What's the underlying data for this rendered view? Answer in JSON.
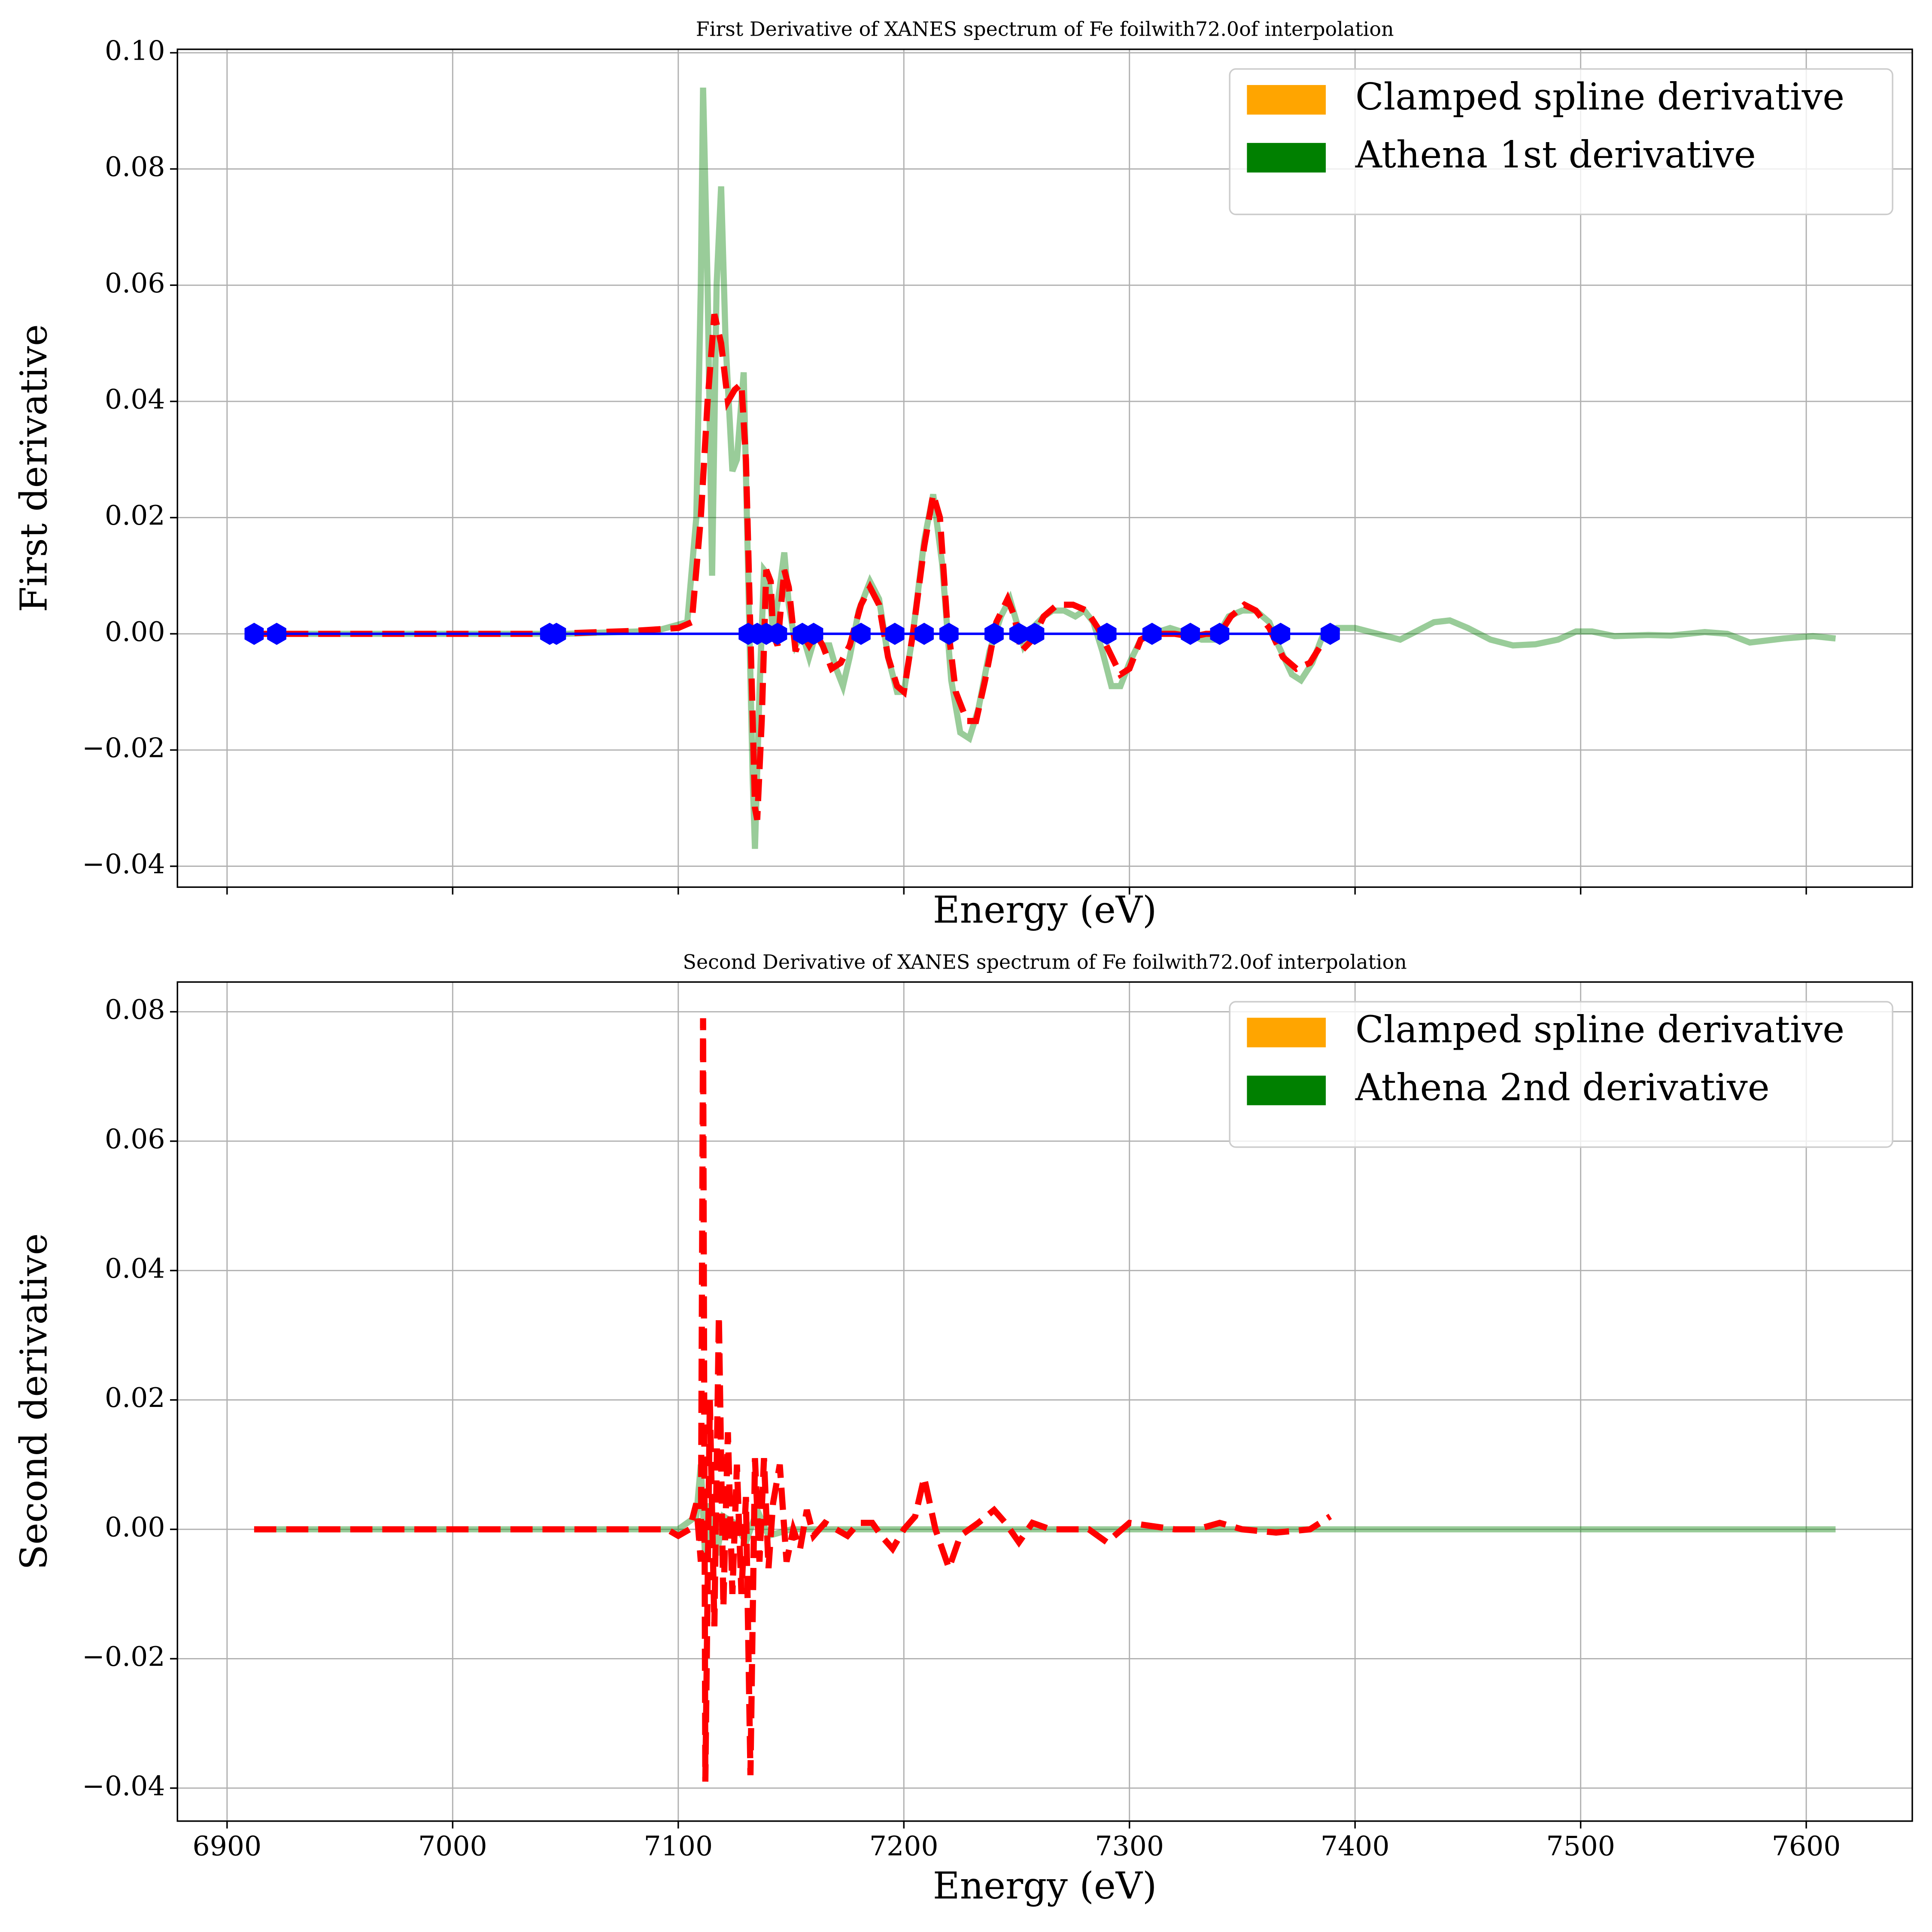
{
  "chart_data": [
    {
      "type": "line",
      "title": "First Derivative of XANES spectrum of Fe foilwith72.0of interpolation",
      "x_label": "Energy (eV)",
      "y_label": "First derivative",
      "xlim": [
        6878,
        7647
      ],
      "ylim": [
        -0.0436,
        0.1006
      ],
      "xticks": [
        6900,
        7000,
        7100,
        7200,
        7300,
        7400,
        7500,
        7600
      ],
      "xtick_labels": false,
      "yticks": [
        {
          "value": -0.04,
          "label": "−0.04"
        },
        {
          "value": -0.02,
          "label": "−0.02"
        },
        {
          "value": 0,
          "label": "0.00"
        },
        0.02,
        0.04,
        0.06,
        0.08,
        {
          "value": 0.1,
          "label": "0.10"
        }
      ],
      "grid": true,
      "legend": "upper right",
      "series": [
        {
          "name": "Clamped spline derivative",
          "legend_color": "orange",
          "color": "red",
          "linestyle": "dashed",
          "zorder": 2,
          "x": [
            6912,
            6922,
            7044,
            7080,
            7100,
            7106,
            7110,
            7113,
            7116,
            7119,
            7122,
            7125,
            7128,
            7130,
            7132,
            7134,
            7135,
            7137,
            7139,
            7141,
            7142,
            7144,
            7147,
            7149,
            7152,
            7155,
            7158,
            7161,
            7164,
            7168,
            7172,
            7176,
            7181,
            7185,
            7189,
            7193,
            7197,
            7200,
            7204,
            7209,
            7213,
            7216,
            7219,
            7223,
            7228,
            7232,
            7236,
            7241,
            7246,
            7249,
            7252,
            7257,
            7262,
            7268,
            7275,
            7281,
            7286,
            7291,
            7296,
            7300,
            7305,
            7310,
            7320,
            7328,
            7334,
            7340,
            7345,
            7351,
            7356,
            7362,
            7368,
            7374,
            7380,
            7388
          ],
          "values": [
            0,
            0,
            0,
            0.0005,
            0.001,
            0.002,
            0.02,
            0.04,
            0.055,
            0.05,
            0.04,
            0.042,
            0.043,
            0.03,
            0,
            -0.03,
            -0.032,
            -0.015,
            0.011,
            0.009,
            0,
            -0.002,
            0.011,
            0.008,
            -0.003,
            0,
            -0.002,
            0,
            -0.002,
            -0.006,
            -0.005,
            -0.002,
            0.005,
            0.008,
            0.005,
            -0.004,
            -0.009,
            -0.01,
            0,
            0.015,
            0.024,
            0.02,
            0.003,
            -0.01,
            -0.015,
            -0.015,
            -0.008,
            0.002,
            0.006,
            0.003,
            -0.003,
            -0.001,
            0.003,
            0.005,
            0.005,
            0.004,
            0.001,
            -0.003,
            -0.007,
            -0.006,
            -0.001,
            0,
            0,
            -0.0005,
            0,
            0,
            0.003,
            0.005,
            0.004,
            0.001,
            -0.004,
            -0.006,
            -0.005,
            0
          ]
        },
        {
          "name": "Athena 1st derivative",
          "legend_color": "green",
          "color": "green",
          "alpha": 0.4,
          "linestyle": "solid",
          "zorder": 1,
          "x": [
            6912,
            7050,
            7090,
            7104,
            7108,
            7110,
            7111,
            7113,
            7115,
            7117,
            7119,
            7121,
            7124,
            7126,
            7129,
            7131,
            7133,
            7134,
            7136,
            7138,
            7140,
            7142,
            7145,
            7147,
            7149,
            7152,
            7155,
            7158,
            7161,
            7164,
            7167,
            7170,
            7173,
            7176,
            7180,
            7185,
            7189,
            7193,
            7197,
            7200,
            7204,
            7209,
            7213,
            7217,
            7221,
            7225,
            7229,
            7233,
            7238,
            7243,
            7247,
            7250,
            7253,
            7257,
            7262,
            7266,
            7271,
            7276,
            7280,
            7284,
            7288,
            7292,
            7296,
            7300,
            7305,
            7310,
            7318,
            7326,
            7332,
            7338,
            7344,
            7350,
            7356,
            7362,
            7366,
            7372,
            7376,
            7381,
            7386,
            7392,
            7400,
            7410,
            7420,
            7425,
            7435,
            7442,
            7450,
            7460,
            7470,
            7480,
            7490,
            7498,
            7505,
            7515,
            7530,
            7540,
            7555,
            7565,
            7575,
            7590,
            7603,
            7613
          ],
          "values": [
            0,
            0,
            0.0005,
            0.002,
            0.02,
            0.06,
            0.094,
            0.06,
            0.01,
            0.06,
            0.077,
            0.05,
            0.028,
            0.03,
            0.045,
            0.01,
            -0.025,
            -0.037,
            -0.01,
            0.011,
            0.01,
            0,
            0.008,
            0.014,
            0.005,
            -0.002,
            0,
            -0.004,
            0,
            -0.002,
            -0.002,
            -0.006,
            -0.009,
            -0.004,
            0.004,
            0.009,
            0.006,
            -0.004,
            -0.01,
            -0.01,
            0,
            0.016,
            0.024,
            0.012,
            -0.008,
            -0.017,
            -0.018,
            -0.013,
            -0.003,
            0.003,
            0.006,
            0.002,
            -0.002,
            0.001,
            0.003,
            0.004,
            0.004,
            0.003,
            0.004,
            0.002,
            -0.003,
            -0.009,
            -0.009,
            -0.005,
            -0.001,
            0,
            0.001,
            0,
            -0.001,
            -0.001,
            0.003,
            0.004,
            0.004,
            0.002,
            -0.002,
            -0.007,
            -0.008,
            -0.005,
            0,
            0.001,
            0.001,
            0,
            -0.001,
            0,
            0.002,
            0.0023,
            0.001,
            -0.001,
            -0.002,
            -0.0018,
            -0.001,
            0.0004,
            0.0004,
            -0.0004,
            -0.0002,
            -0.0003,
            0.0003,
            0,
            -0.0015,
            -0.0008,
            -0.0004,
            -0.0008
          ]
        },
        {
          "color": "blue",
          "linestyle": "solid",
          "marker": "hexagon",
          "zorder": 3,
          "x": [
            6912,
            6922,
            7043,
            7046,
            7131,
            7135,
            7139,
            7144,
            7155,
            7160,
            7181,
            7196,
            7209,
            7220,
            7240,
            7251,
            7258,
            7290,
            7310,
            7327,
            7340,
            7367,
            7389
          ],
          "values": [
            0,
            0,
            0,
            0,
            0,
            0,
            0,
            0,
            0,
            0,
            0,
            0,
            0,
            0,
            0,
            0,
            0,
            0,
            0,
            0,
            0,
            0,
            0
          ]
        }
      ]
    },
    {
      "type": "line",
      "title": "Second Derivative of XANES spectrum of Fe foilwith72.0of interpolation",
      "x_label": "Energy (eV)",
      "y_label": "Second derivative",
      "xlim": [
        6878,
        7647
      ],
      "ylim": [
        -0.0451,
        0.0846
      ],
      "xticks": [
        6900,
        7000,
        7100,
        7200,
        7300,
        7400,
        7500,
        7600
      ],
      "yticks": [
        {
          "value": -0.04,
          "label": "−0.04"
        },
        {
          "value": -0.02,
          "label": "−0.02"
        },
        {
          "value": 0,
          "label": "0.00"
        },
        0.02,
        0.04,
        0.06,
        0.08
      ],
      "grid": true,
      "legend": "upper right",
      "series": [
        {
          "name": "Clamped spline derivative",
          "legend_color": "orange",
          "color": "red",
          "linestyle": "dashed",
          "zorder": 2,
          "x": [
            6912,
            6922,
            7090,
            7095,
            7100,
            7105,
            7108,
            7110,
            7111,
            7112,
            7114,
            7116,
            7118,
            7120,
            7122,
            7124,
            7126,
            7128,
            7130,
            7132,
            7134,
            7136,
            7138,
            7140,
            7142,
            7145,
            7148,
            7151,
            7154,
            7157,
            7160,
            7165,
            7170,
            7175,
            7180,
            7186,
            7190,
            7195,
            7200,
            7205,
            7209,
            7214,
            7220,
            7225,
            7233,
            7240,
            7245,
            7251,
            7257,
            7265,
            7275,
            7282,
            7290,
            7300,
            7310,
            7320,
            7330,
            7340,
            7350,
            7365,
            7380,
            7389
          ],
          "values": [
            0,
            0,
            0,
            0,
            -0.001,
            0,
            0.004,
            -0.005,
            0.079,
            -0.039,
            0.02,
            -0.015,
            0.033,
            -0.012,
            0.015,
            -0.01,
            0.01,
            -0.01,
            0.005,
            -0.038,
            0.011,
            -0.005,
            0.011,
            -0.006,
            0.004,
            0.01,
            -0.005,
            0,
            -0.003,
            0.003,
            -0.001,
            0.001,
            0,
            -0.001,
            0.001,
            0.001,
            -0.001,
            -0.003,
            0,
            0.002,
            0.008,
            0,
            -0.006,
            -0.001,
            0.001,
            0.003,
            0.001,
            -0.002,
            0.001,
            0,
            0,
            0,
            -0.002,
            0.001,
            0.0005,
            0,
            0,
            0.001,
            0,
            -0.0005,
            0,
            0.002
          ]
        },
        {
          "name": "Athena 2nd derivative",
          "legend_color": "green",
          "color": "green",
          "alpha": 0.4,
          "linestyle": "solid",
          "zorder": 1,
          "x": [
            6912,
            7100,
            7108,
            7110,
            7112,
            7114,
            7117,
            7120,
            7125,
            7130,
            7135,
            7140,
            7150,
            7200,
            7300,
            7613
          ],
          "values": [
            0,
            0,
            0.002,
            0.01,
            -0.005,
            0.004,
            -0.004,
            0.002,
            0.001,
            -0.002,
            0.003,
            -0.001,
            0,
            0,
            0,
            0
          ]
        }
      ]
    }
  ]
}
